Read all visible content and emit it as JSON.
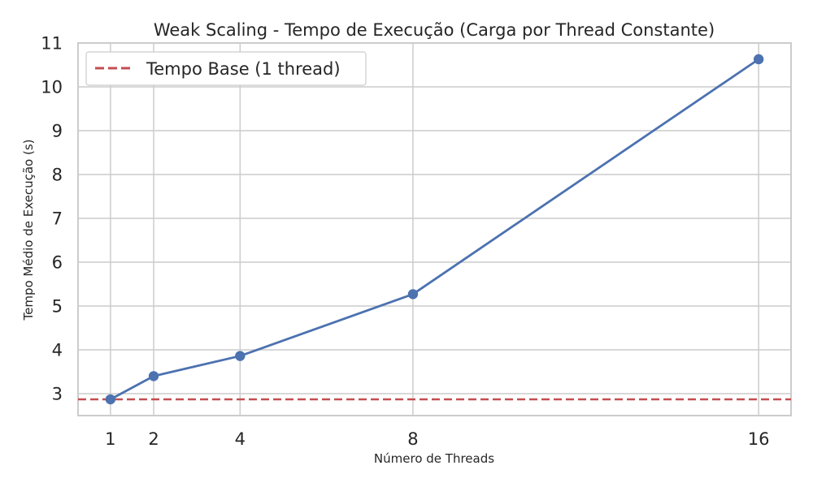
{
  "chart_data": {
    "type": "line",
    "title": "Weak Scaling - Tempo de Execução (Carga por Thread Constante)",
    "xlabel": "Número de Threads",
    "ylabel": "Tempo Médio de Execução (s)",
    "x": [
      1,
      2,
      4,
      8,
      16
    ],
    "x_tick_labels": [
      "1",
      "2",
      "4",
      "8",
      "16"
    ],
    "y_tick_labels": [
      "3",
      "4",
      "5",
      "6",
      "7",
      "8",
      "9",
      "10",
      "11"
    ],
    "xlim": [
      0.25,
      16.75
    ],
    "ylim": [
      2.5,
      11
    ],
    "grid": true,
    "legend_position": "top-left",
    "series": [
      {
        "values": [
          2.87,
          3.4,
          3.86,
          5.27,
          10.63
        ],
        "color": "#4c72b0",
        "marker": "circle"
      }
    ],
    "reference_lines": [
      {
        "name": "Tempo Base (1 thread)",
        "y": 2.87,
        "style": "dashed",
        "color": "#c44e52"
      }
    ]
  }
}
